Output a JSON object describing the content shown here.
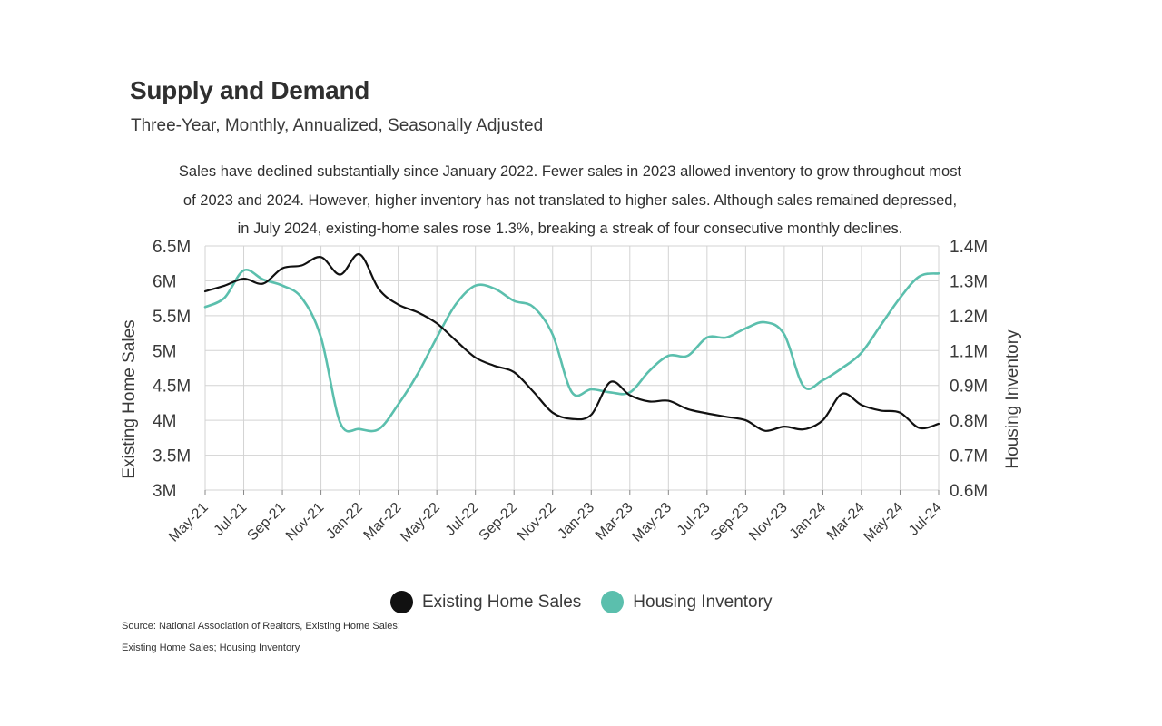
{
  "header": {
    "title": "Supply and Demand",
    "subtitle": "Three-Year, Monthly, Annualized, Seasonally Adjusted"
  },
  "description": [
    "Sales have declined substantially since January 2022. Fewer sales in 2023 allowed inventory to grow throughout most",
    "of 2023 and 2024. However, higher inventory has not translated to higher sales. Although sales remained depressed,",
    "in July 2024, existing-home sales rose 1.3%, breaking a streak of four consecutive monthly declines."
  ],
  "colors": {
    "sales": "#111111",
    "inventory": "#5bbfad",
    "grid": "#d3d3d3"
  },
  "chart_data": {
    "type": "line",
    "x": [
      "May-21",
      "Jun-21",
      "Jul-21",
      "Aug-21",
      "Sep-21",
      "Oct-21",
      "Nov-21",
      "Dec-21",
      "Jan-22",
      "Feb-22",
      "Mar-22",
      "Apr-22",
      "May-22",
      "Jun-22",
      "Jul-22",
      "Aug-22",
      "Sep-22",
      "Oct-22",
      "Nov-22",
      "Dec-22",
      "Jan-23",
      "Feb-23",
      "Mar-23",
      "Apr-23",
      "May-23",
      "Jun-23",
      "Jul-23",
      "Aug-23",
      "Sep-23",
      "Oct-23",
      "Nov-23",
      "Dec-23",
      "Jan-24",
      "Feb-24",
      "Mar-24",
      "Apr-24",
      "May-24",
      "Jun-24",
      "Jul-24"
    ],
    "x_tick_labels": [
      "May-21",
      "Jul-21",
      "Sep-21",
      "Nov-21",
      "Jan-22",
      "Mar-22",
      "May-22",
      "Jul-22",
      "Sep-22",
      "Nov-22",
      "Jan-23",
      "Mar-23",
      "May-23",
      "Jul-23",
      "Sep-23",
      "Nov-23",
      "Jan-24",
      "Mar-24",
      "May-24",
      "Jul-24"
    ],
    "series": [
      {
        "name": "Existing Home Sales",
        "axis": "left",
        "values": [
          5.85,
          5.93,
          6.03,
          5.96,
          6.18,
          6.22,
          6.34,
          6.09,
          6.38,
          5.88,
          5.66,
          5.55,
          5.39,
          5.14,
          4.9,
          4.78,
          4.69,
          4.41,
          4.11,
          4.02,
          4.08,
          4.55,
          4.36,
          4.27,
          4.28,
          4.16,
          4.1,
          4.05,
          4.0,
          3.85,
          3.91,
          3.87,
          4.0,
          4.38,
          4.22,
          4.14,
          4.11,
          3.89,
          3.95
        ]
      },
      {
        "name": "Housing Inventory",
        "axis": "right",
        "values": [
          1.2,
          1.23,
          1.32,
          1.29,
          1.27,
          1.23,
          1.1,
          0.82,
          0.8,
          0.8,
          0.88,
          0.98,
          1.1,
          1.21,
          1.27,
          1.26,
          1.22,
          1.2,
          1.11,
          0.92,
          0.93,
          0.92,
          0.92,
          0.99,
          1.04,
          1.04,
          1.1,
          1.1,
          1.13,
          1.15,
          1.11,
          0.94,
          0.96,
          1.0,
          1.05,
          1.14,
          1.23,
          1.3,
          1.31
        ]
      }
    ],
    "y_left": {
      "label": "Existing Home Sales",
      "ylim": [
        3.0,
        6.5
      ],
      "ticks": [
        "6.5M",
        "6M",
        "5.5M",
        "5M",
        "4.5M",
        "4M",
        "3.5M",
        "3M"
      ]
    },
    "y_right": {
      "label": "Housing Inventory",
      "ylim": [
        0.6,
        1.4
      ],
      "ticks": [
        "1.4M",
        "1.3M",
        "1.2M",
        "1.1M",
        "0.9M",
        "0.8M",
        "0.7M",
        "0.6M"
      ]
    },
    "grid": true,
    "legend": "bottom-center"
  },
  "legend": {
    "sales_label": "Existing Home Sales",
    "inventory_label": "Housing Inventory"
  },
  "source": {
    "line1": "Source:  National Association of Realtors, Existing Home Sales;",
    "line2": "Existing Home Sales; Housing Inventory"
  }
}
